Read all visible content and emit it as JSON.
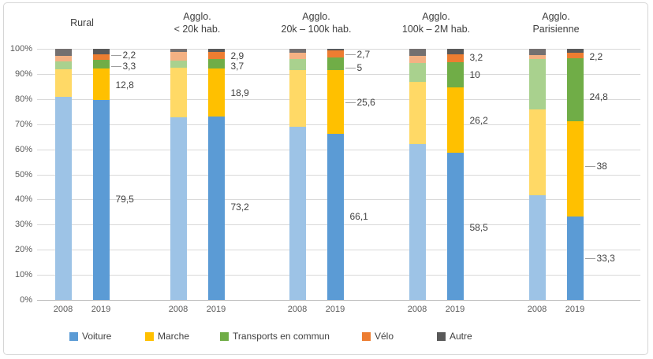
{
  "chart_data": {
    "type": "bar",
    "subtype": "stacked-100-percent",
    "title": "",
    "xlabel": "",
    "ylabel": "",
    "y_axis": {
      "min": 0,
      "max": 100,
      "ticks": [
        "0%",
        "10%",
        "20%",
        "30%",
        "40%",
        "50%",
        "60%",
        "70%",
        "80%",
        "90%",
        "100%"
      ],
      "grid": true
    },
    "years": [
      "2008",
      "2019"
    ],
    "series_order": [
      "voiture",
      "marche",
      "tc",
      "velo",
      "autre"
    ],
    "legend": {
      "position": "bottom",
      "entries": [
        {
          "key": "voiture",
          "label": "Voiture"
        },
        {
          "key": "marche",
          "label": "Marche"
        },
        {
          "key": "tc",
          "label": "Transports en commun"
        },
        {
          "key": "velo",
          "label": "Vélo"
        },
        {
          "key": "autre",
          "label": "Autre"
        }
      ]
    },
    "colors": {
      "2008": {
        "voiture": "#9DC3E6",
        "marche": "#FFD966",
        "tc": "#A9D18E",
        "velo": "#F4B183",
        "autre": "#747070"
      },
      "2019": {
        "voiture": "#5B9BD5",
        "marche": "#FFC000",
        "tc": "#70AD47",
        "velo": "#ED7D31",
        "autre": "#595959"
      },
      "grid": "#D9D9D9",
      "axis": "#BFBFBF",
      "tick_text": "#595959",
      "title_text": "#404040",
      "label_text": "#404040",
      "leader": "#9E9E9E",
      "frame_border": "#D6D6D6"
    },
    "groups": [
      {
        "title_lines": [
          "Rural"
        ],
        "bars": [
          {
            "year": "2008",
            "values": {
              "voiture": 80.8,
              "marche": 11.0,
              "tc": 3.1,
              "velo": 2.4,
              "autre": 2.7
            }
          },
          {
            "year": "2019",
            "values": {
              "voiture": 79.5,
              "marche": 12.8,
              "tc": 3.3,
              "velo": 2.2,
              "autre": 2.2
            }
          }
        ],
        "labels": [
          {
            "text": "2,2",
            "series": "velo",
            "pos": 97.4,
            "leader": true
          },
          {
            "text": "3,3",
            "series": "tc",
            "pos": 93.0,
            "leader": true
          },
          {
            "text": "12,8",
            "series": "marche",
            "pos": 85.5,
            "leader": false
          },
          {
            "text": "79,5",
            "series": "voiture",
            "pos": 40.0,
            "leader": false
          }
        ]
      },
      {
        "title_lines": [
          "Agglo.",
          "< 20k hab."
        ],
        "bars": [
          {
            "year": "2008",
            "values": {
              "voiture": 72.7,
              "marche": 19.8,
              "tc": 2.9,
              "velo": 3.4,
              "autre": 1.2
            }
          },
          {
            "year": "2019",
            "values": {
              "voiture": 73.2,
              "marche": 18.9,
              "tc": 3.7,
              "velo": 2.9,
              "autre": 1.3
            }
          }
        ],
        "labels": [
          {
            "text": "2,9",
            "series": "velo",
            "pos": 97.3,
            "leader": false
          },
          {
            "text": "3,7",
            "series": "tc",
            "pos": 93.0,
            "leader": false
          },
          {
            "text": "18,9",
            "series": "marche",
            "pos": 82.3,
            "leader": false
          },
          {
            "text": "73,2",
            "series": "voiture",
            "pos": 37.0,
            "leader": false
          }
        ]
      },
      {
        "title_lines": [
          "Agglo.",
          "20k – 100k hab."
        ],
        "bars": [
          {
            "year": "2008",
            "values": {
              "voiture": 68.9,
              "marche": 22.5,
              "tc": 4.5,
              "velo": 2.4,
              "autre": 1.7
            }
          },
          {
            "year": "2019",
            "values": {
              "voiture": 66.1,
              "marche": 25.6,
              "tc": 5,
              "velo": 2.7,
              "autre": 0.6
            }
          }
        ],
        "labels": [
          {
            "text": "2,7",
            "series": "velo",
            "pos": 97.8,
            "leader": true
          },
          {
            "text": "5",
            "series": "tc",
            "pos": 92.4,
            "leader": true
          },
          {
            "text": "25,6",
            "series": "marche",
            "pos": 78.7,
            "leader": true
          },
          {
            "text": "66,1",
            "series": "voiture",
            "pos": 33.2,
            "leader": false
          }
        ]
      },
      {
        "title_lines": [
          "Agglo.",
          "100k – 2M hab."
        ],
        "bars": [
          {
            "year": "2008",
            "values": {
              "voiture": 62.0,
              "marche": 24.8,
              "tc": 7.7,
              "velo": 2.7,
              "autre": 2.8
            }
          },
          {
            "year": "2019",
            "values": {
              "voiture": 58.5,
              "marche": 26.2,
              "tc": 10,
              "velo": 3.2,
              "autre": 2.1
            }
          }
        ],
        "labels": [
          {
            "text": "3,2",
            "series": "velo",
            "pos": 96.7,
            "leader": false
          },
          {
            "text": "10",
            "series": "tc",
            "pos": 89.6,
            "leader": false
          },
          {
            "text": "26,2",
            "series": "marche",
            "pos": 71.5,
            "leader": false
          },
          {
            "text": "58,5",
            "series": "voiture",
            "pos": 28.8,
            "leader": false
          }
        ]
      },
      {
        "title_lines": [
          "Agglo.",
          "Parisienne"
        ],
        "bars": [
          {
            "year": "2008",
            "values": {
              "voiture": 41.8,
              "marche": 34.0,
              "tc": 20.1,
              "velo": 1.6,
              "autre": 2.5
            }
          },
          {
            "year": "2019",
            "values": {
              "voiture": 33.3,
              "marche": 38,
              "tc": 24.8,
              "velo": 2.2,
              "autre": 1.7
            }
          }
        ],
        "labels": [
          {
            "text": "2,2",
            "series": "velo",
            "pos": 96.9,
            "leader": false
          },
          {
            "text": "24,8",
            "series": "tc",
            "pos": 81.0,
            "leader": false
          },
          {
            "text": "38",
            "series": "marche",
            "pos": 53.3,
            "leader": true
          },
          {
            "text": "33,3",
            "series": "voiture",
            "pos": 16.6,
            "leader": true
          }
        ]
      }
    ]
  }
}
